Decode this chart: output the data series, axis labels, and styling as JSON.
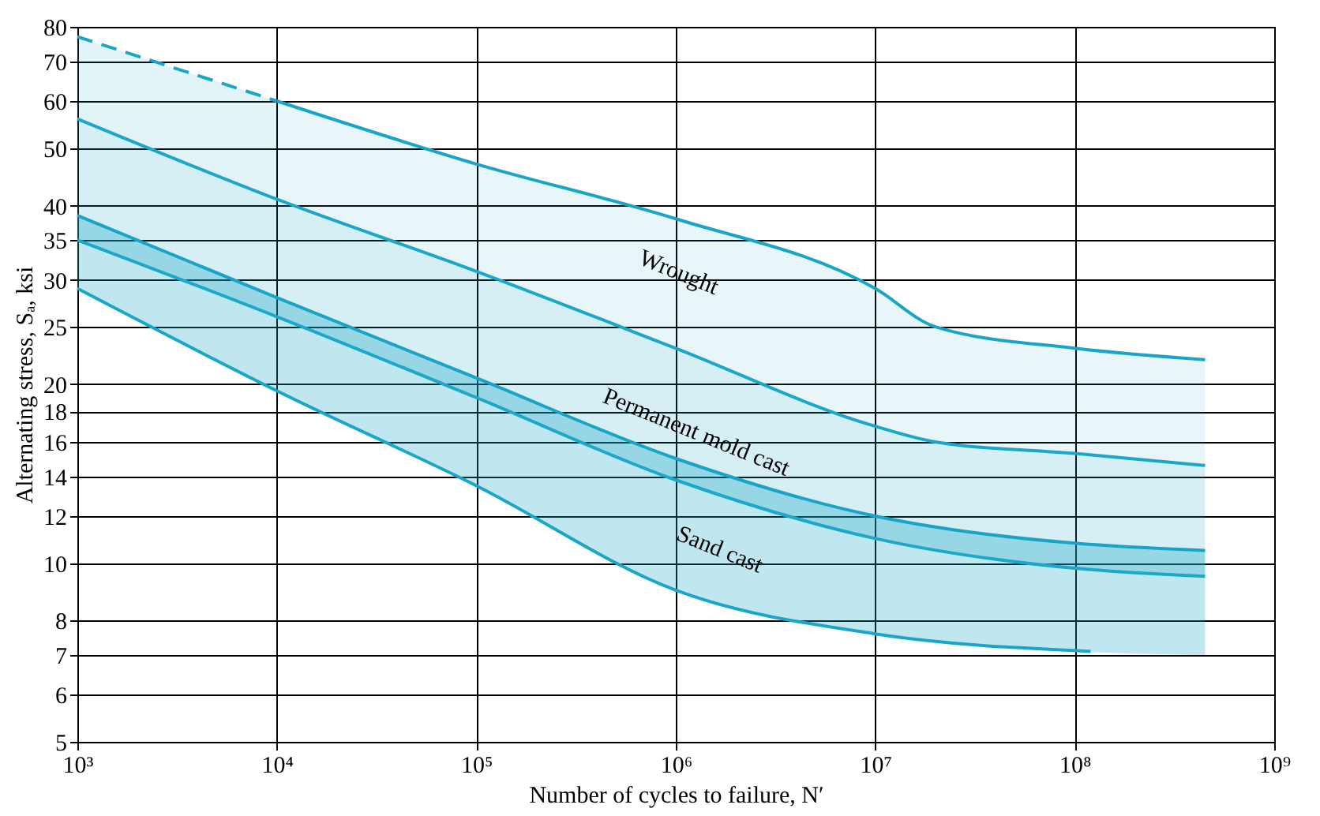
{
  "chart_data": {
    "type": "line",
    "xlabel": "Number of cycles to failure, N′",
    "ylabel": "Alternating stress, Sₐ, ksi",
    "log": "xy",
    "grid": true,
    "xlim": [
      1000,
      1000000000
    ],
    "ylim": [
      5,
      80
    ],
    "xticks": [
      {
        "value": 1000,
        "label": "10³"
      },
      {
        "value": 10000,
        "label": "10⁴"
      },
      {
        "value": 100000,
        "label": "10⁵"
      },
      {
        "value": 1000000,
        "label": "10⁶"
      },
      {
        "value": 10000000,
        "label": "10⁷"
      },
      {
        "value": 100000000,
        "label": "10⁸"
      },
      {
        "value": 1000000000,
        "label": "10⁹"
      }
    ],
    "yticks": [
      5,
      6,
      7,
      8,
      10,
      12,
      14,
      16,
      18,
      20,
      25,
      30,
      35,
      40,
      50,
      60,
      70,
      80
    ],
    "series": [
      {
        "color": "#1aa6c8",
        "line_style": "dashed",
        "x": [
          1000,
          10000
        ],
        "values": [
          77,
          60
        ],
        "upper": [
          77,
          60
        ],
        "lower": [
          56,
          41
        ]
      },
      {
        "color": "#19a5c7",
        "line_style": "solid",
        "x": [
          10000,
          100000,
          1000000,
          10000000,
          20000000,
          100000000,
          450000000
        ],
        "values": [
          60,
          47,
          38,
          29,
          25,
          23,
          22
        ],
        "upper": [
          60,
          47,
          38,
          29,
          25,
          23,
          22
        ],
        "lower": [
          41,
          31,
          23,
          17,
          16,
          15.3,
          14.6
        ]
      },
      {
        "color": "#1ba7c9",
        "line_style": "solid",
        "x": [
          1000,
          10000,
          100000,
          1000000,
          10000000,
          20000000,
          100000000,
          450000000
        ],
        "values": [
          56,
          41,
          31,
          23,
          17,
          16,
          15.3,
          14.6
        ],
        "upper": [
          56,
          41,
          31,
          23,
          17,
          16,
          15.3,
          14.6
        ],
        "lower": [
          38.5,
          28,
          20.5,
          15,
          12,
          11.5,
          10.8,
          10.5
        ]
      },
      {
        "color": "#18a4c6",
        "line_style": "solid",
        "x": [
          1000,
          10000,
          100000,
          1000000,
          10000000,
          20000000,
          100000000,
          450000000
        ],
        "values": [
          38.5,
          28,
          20.5,
          15,
          12,
          11.5,
          10.8,
          10.5
        ],
        "upper": [
          38.5,
          28,
          20.5,
          15,
          12,
          11.5,
          10.8,
          10.5
        ],
        "lower": [
          35,
          26,
          19,
          13.8,
          11,
          10.5,
          9.8,
          9.5
        ]
      },
      {
        "color": "#1ca8ca",
        "line_style": "solid",
        "x": [
          1000,
          10000,
          100000,
          1000000,
          10000000,
          100000000,
          450000000
        ],
        "values": [
          35,
          26,
          19,
          13.8,
          11,
          9.8,
          9.5
        ],
        "upper": [
          35,
          26,
          19,
          13.8,
          11,
          9.8,
          9.5
        ],
        "lower": [
          29,
          19.5,
          13.5,
          9,
          7.6,
          7.1,
          7
        ]
      },
      {
        "color": "#1aa6c8",
        "line_style": "solid",
        "x": [
          1000,
          10000,
          100000,
          1000000,
          10000000,
          120000000
        ],
        "values": [
          29,
          19.5,
          13.5,
          9,
          7.6,
          7.1
        ]
      }
    ],
    "annotations": [
      "Wrought",
      "Permanent mold cast",
      "Sand cast"
    ]
  }
}
